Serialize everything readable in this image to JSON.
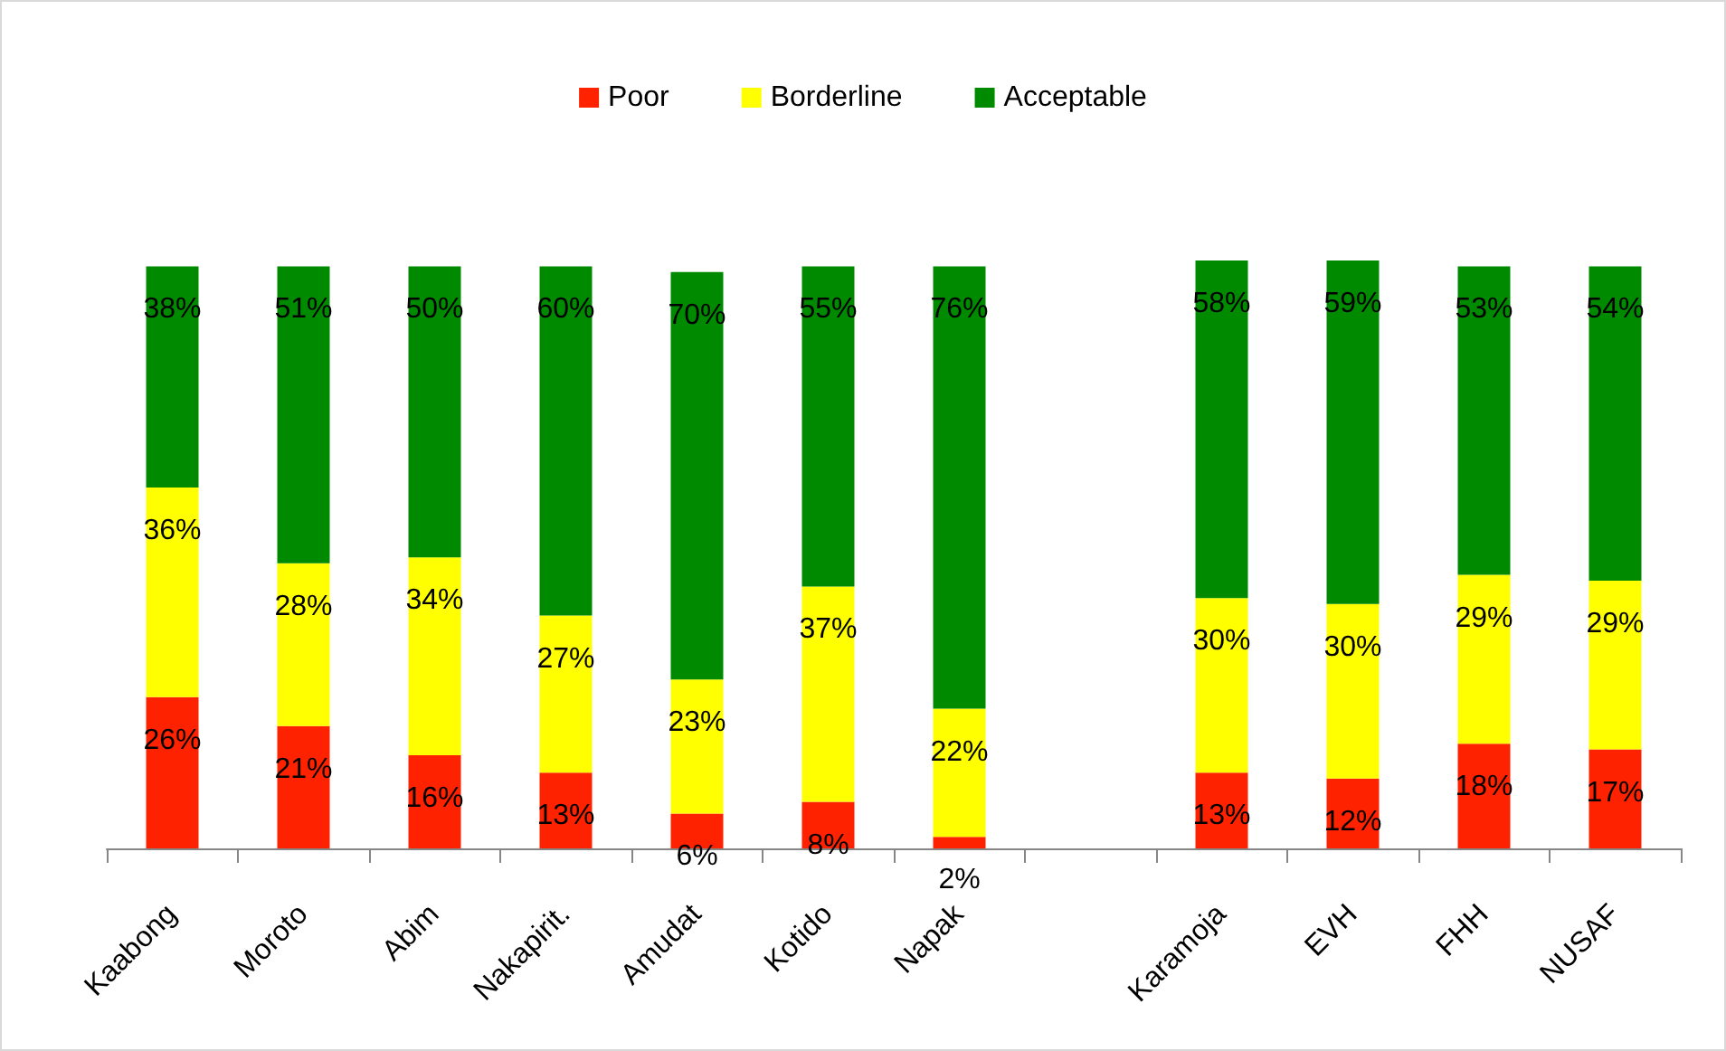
{
  "chart_data": {
    "type": "bar",
    "stacked": true,
    "categories": [
      "Kaabong",
      "Moroto",
      "Abim",
      "Nakapirit.",
      "Amudat",
      "Kotido",
      "Napak",
      null,
      "Karamoja",
      "EVH",
      "FHH",
      "NUSAF"
    ],
    "series": [
      {
        "name": "Poor",
        "color": "#ff2200",
        "values": [
          26,
          21,
          16,
          13,
          6,
          8,
          2,
          null,
          13,
          12,
          18,
          17
        ],
        "value_labels": [
          "26%",
          "21%",
          "16%",
          "13%",
          "6%",
          "8%",
          "2%",
          null,
          "13%",
          "12%",
          "18%",
          "17%"
        ]
      },
      {
        "name": "Borderline",
        "color": "#ffff00",
        "values": [
          36,
          28,
          34,
          27,
          23,
          37,
          22,
          null,
          30,
          30,
          29,
          29
        ],
        "value_labels": [
          "36%",
          "28%",
          "34%",
          "27%",
          "23%",
          "37%",
          "22%",
          null,
          "30%",
          "30%",
          "29%",
          "29%"
        ]
      },
      {
        "name": "Acceptable",
        "color": "#008a00",
        "values": [
          38,
          51,
          50,
          60,
          70,
          55,
          76,
          null,
          58,
          59,
          53,
          54
        ],
        "value_labels": [
          "38%",
          "51%",
          "50%",
          "60%",
          "70%",
          "55%",
          "76%",
          null,
          "58%",
          "59%",
          "53%",
          "54%"
        ]
      }
    ],
    "legend": "top",
    "tick_labels": "x"
  }
}
